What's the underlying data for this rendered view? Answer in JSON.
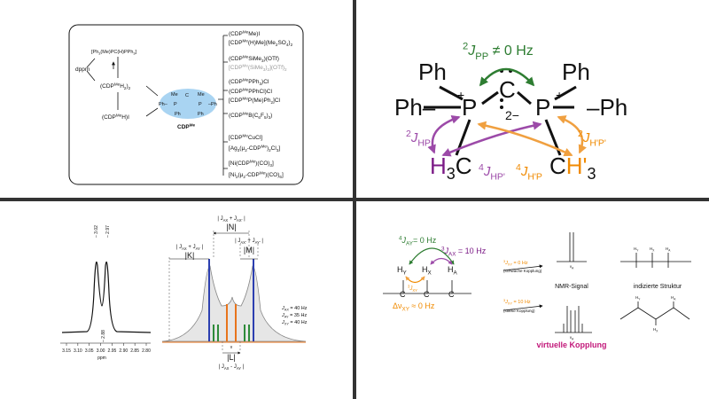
{
  "p1": {
    "precursor": [
      "[Ph",
      "3",
      "(Me)PC(H)PPh",
      "3",
      "]"
    ],
    "dppm": "dppm",
    "dimer": [
      "(CDP",
      "Me",
      "H",
      "2",
      ")",
      "2"
    ],
    "hydroiodide": [
      "(CDP",
      "Me",
      "H)I"
    ],
    "mol": [
      "Me",
      "Me",
      "Ph–",
      "P",
      "C",
      "P",
      "–Ph",
      "Ph",
      "Ph"
    ],
    "cdp": [
      "CDP",
      "Me"
    ],
    "products": [
      [
        "(CDP",
        "Me",
        "Me)I"
      ],
      [
        "[CDP",
        "Me",
        "(H)Me](Me",
        "2",
        "SO",
        "4",
        ")",
        "2"
      ],
      [
        "(CDP",
        "Me",
        "SiMe",
        "3",
        ")(OTf)"
      ],
      [
        "[CDP",
        "Me",
        "(SiMe",
        "3",
        ")",
        "2",
        "](OTf)",
        "2"
      ],
      [
        "(CDP",
        "Me",
        "PPh",
        "3",
        ")Cl"
      ],
      [
        "(CDP",
        "Me",
        "PPhCl)Cl"
      ],
      [
        "[CDP",
        "Me",
        "P(Me)Ph",
        "2",
        "]Cl"
      ],
      [
        "(CDP",
        "Me",
        "B(C",
        "6",
        "F",
        "5",
        ")",
        "3",
        ")"
      ],
      [
        "[CDP",
        "Me",
        "CuCl]"
      ],
      [
        "[Ag",
        "3",
        "(μ",
        "2",
        "-CDP",
        "Me",
        ")",
        "2",
        "Cl",
        "3",
        "]"
      ],
      [
        "[Ni(CDP",
        "Me",
        ")(CO)",
        "3",
        "]"
      ],
      [
        "[Ni",
        "2",
        "(μ",
        "2",
        "-CDP",
        "Me",
        ")(CO)",
        "6",
        "]"
      ]
    ]
  },
  "p2": {
    "jpp": [
      "2",
      "J",
      "PP",
      " ≠ 0 Hz"
    ],
    "atoms": [
      "Ph",
      "Ph",
      "Ph–",
      "–Ph",
      "P",
      "P",
      "C",
      "+",
      "2−",
      "H",
      "3",
      "C",
      "H'"
    ],
    "jhp": [
      "2",
      "J",
      "HP"
    ],
    "jhp2": [
      "4",
      "J",
      "HP'"
    ],
    "jhp3": [
      "4",
      "J",
      "H'P"
    ],
    "jhp4": [
      "2",
      "J",
      "H'P'"
    ]
  },
  "p3": {
    "ticks": [
      "3.15",
      "3.10",
      "3.05",
      "3.00",
      "2.95",
      "2.90",
      "2.85",
      "2.80"
    ],
    "unit": "ppm",
    "peaks": [
      "– 3.02",
      "– 2.97",
      "– 2.88"
    ],
    "n_expr": [
      "| J",
      "AX",
      " + J",
      "AX'",
      " |"
    ],
    "n": "|N|",
    "k_expr": [
      "| J",
      "AX",
      " + J",
      "AY",
      " |"
    ],
    "k": "|K|",
    "m_expr": [
      "| J",
      "AX'",
      " + J",
      "AY'",
      " |"
    ],
    "m": "|M|",
    "l": "|L|",
    "l_expr": [
      "| J",
      "AX",
      " - J",
      "AY",
      " |"
    ],
    "nu": "ν",
    "params": [
      [
        "J",
        "AX",
        " = 40 Hz"
      ],
      [
        "J",
        "AY",
        " = 35 Hz"
      ],
      [
        "J",
        "XY",
        " = 40 Hz"
      ]
    ]
  },
  "p4": {
    "jay": [
      "4",
      "J",
      "AY",
      "= 0 Hz"
    ],
    "jax": [
      "3",
      "J",
      "AX",
      " = 10 Hz"
    ],
    "hy": [
      "H",
      "Y"
    ],
    "hx": [
      "H",
      "X"
    ],
    "ha": [
      "H",
      "A"
    ],
    "jxy": [
      "3",
      "J",
      "XY"
    ],
    "c": "C",
    "dnu": [
      "Δν",
      "XY",
      " ≈ 0 Hz"
    ],
    "weak": [
      "3",
      "J",
      "XY",
      " = 0 Hz"
    ],
    "weak_note": "(schwache Kopplung)",
    "strong": [
      "3",
      "J",
      "XY",
      " = 10 Hz"
    ],
    "strong_note": "(starke Kopplung)",
    "nua": [
      "ν",
      "A"
    ],
    "nmr": "NMR-Signal",
    "struct": "indizierte Struktur",
    "virtual": "virtuelle Kopplung"
  }
}
